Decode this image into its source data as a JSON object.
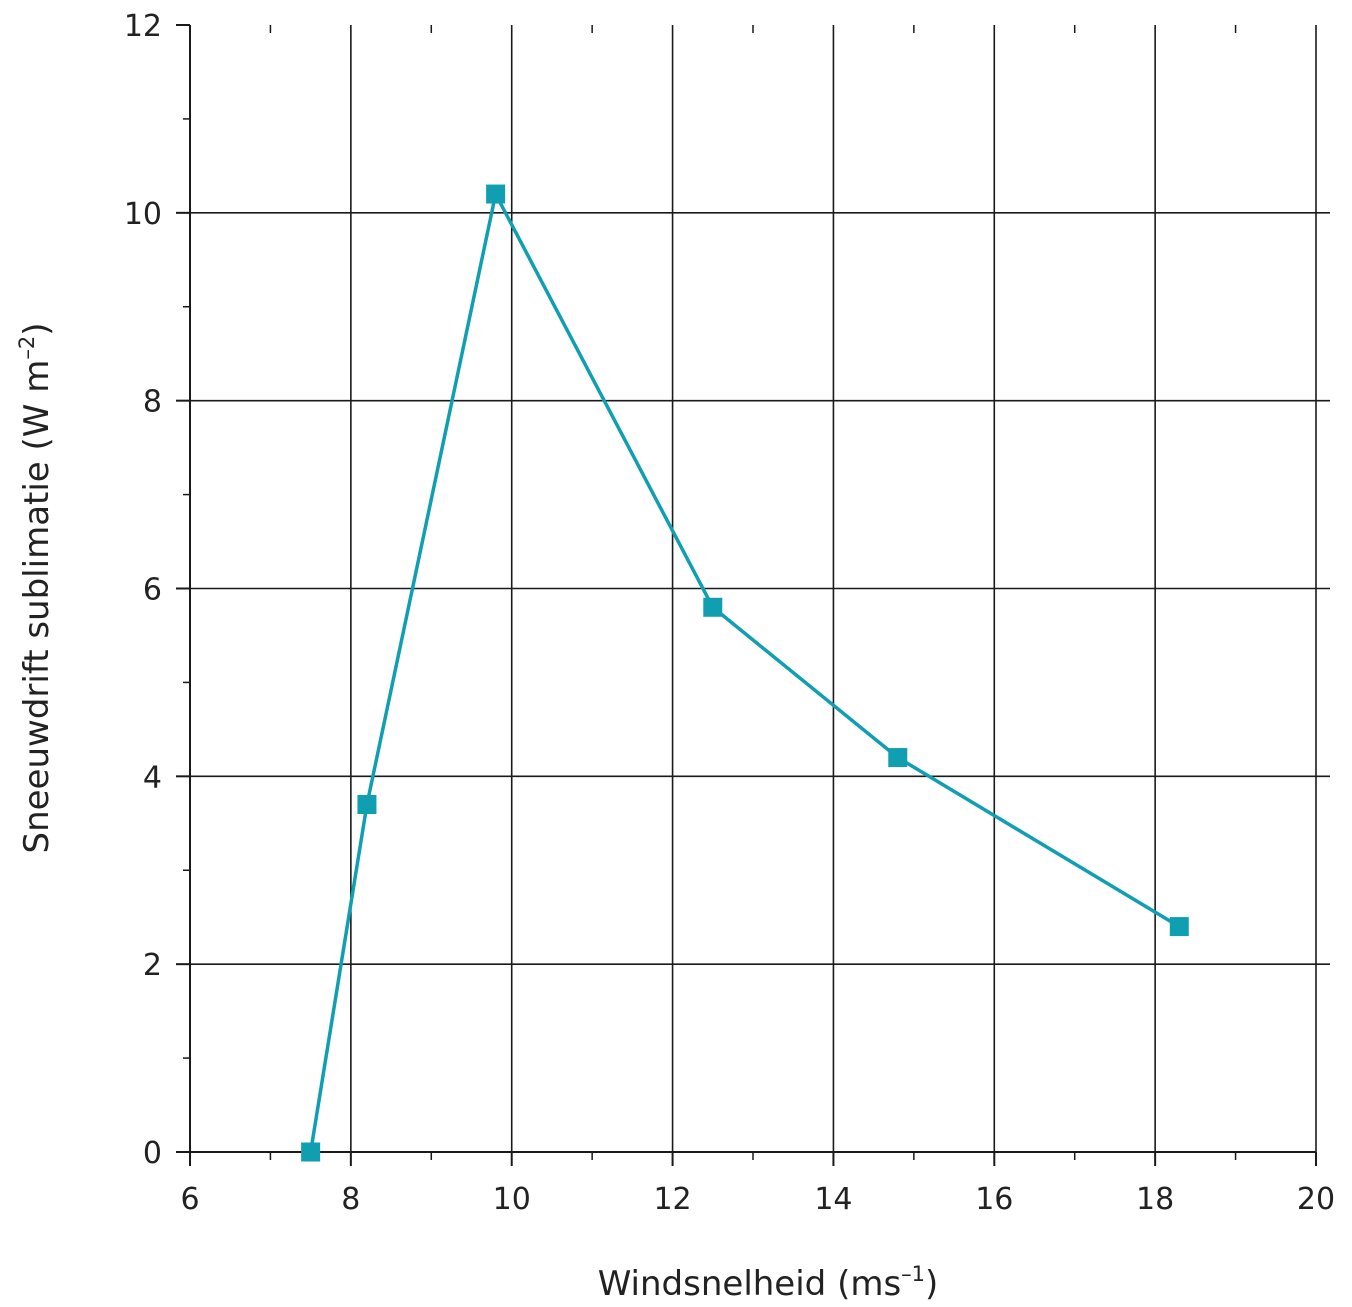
{
  "chart_data": {
    "type": "line",
    "xlabel": "Windsnelheid (ms",
    "xlabel_sup": "–1",
    "xlabel_end": ")",
    "ylabel": "Sneeuwdrift sublimatie (W m",
    "ylabel_sup": "–2",
    "ylabel_end": ")",
    "xlim": [
      6,
      20
    ],
    "ylim": [
      0,
      12
    ],
    "x_ticks": [
      6,
      8,
      10,
      12,
      14,
      16,
      18,
      20
    ],
    "y_ticks": [
      0,
      2,
      4,
      6,
      8,
      10,
      12
    ],
    "grid": true,
    "series": [
      {
        "marker": "square",
        "color": "#109fb1",
        "x": [
          7.5,
          8.2,
          9.8,
          12.5,
          14.8,
          18.3
        ],
        "y": [
          0,
          3.7,
          10.2,
          5.8,
          4.2,
          2.4
        ]
      }
    ]
  }
}
